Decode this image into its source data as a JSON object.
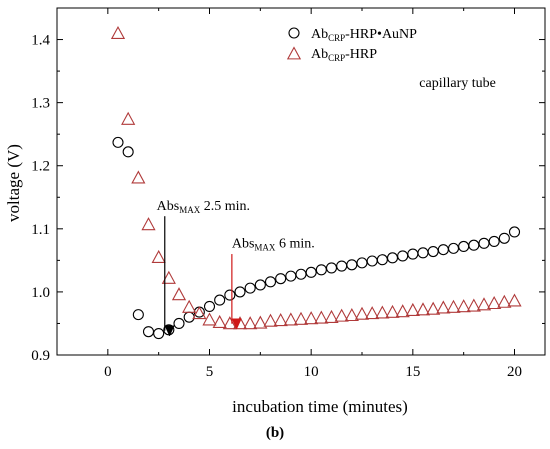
{
  "panel_label": "(b)",
  "chart_data": {
    "type": "scatter",
    "xlabel": "incubation time (minutes)",
    "ylabel": "voltage (V)",
    "xlim": [
      -2.5,
      21.5
    ],
    "ylim": [
      0.9,
      1.45
    ],
    "xticks": [
      0,
      5,
      10,
      15,
      20
    ],
    "yticks": [
      0.9,
      1.0,
      1.1,
      1.2,
      1.3,
      1.4
    ],
    "xtick_labels": [
      "0",
      "5",
      "10",
      "15",
      "20"
    ],
    "ytick_labels": [
      "0.9",
      "1.0",
      "1.1",
      "1.2",
      "1.3",
      "1.4"
    ],
    "legend_position": "top-right",
    "series": [
      {
        "name": "AbCRP-HRP•AuNP",
        "name_main": "Ab",
        "name_sub": "CRP",
        "name_rest": "-HRP•AuNP",
        "marker": "circle",
        "color": "#000000",
        "x": [
          0.5,
          1.0,
          1.5,
          2.0,
          2.5,
          3.0,
          3.5,
          4.0,
          4.5,
          5.0,
          5.5,
          6.0,
          6.5,
          7.0,
          7.5,
          8.0,
          8.5,
          9.0,
          9.5,
          10.0,
          10.5,
          11.0,
          11.5,
          12.0,
          12.5,
          13.0,
          13.5,
          14.0,
          14.5,
          15.0,
          15.5,
          16.0,
          16.5,
          17.0,
          17.5,
          18.0,
          18.5,
          19.0,
          19.5,
          20.0
        ],
        "y": [
          1.237,
          1.222,
          0.964,
          0.937,
          0.934,
          0.94,
          0.95,
          0.96,
          0.968,
          0.977,
          0.987,
          0.995,
          1.0,
          1.006,
          1.011,
          1.016,
          1.021,
          1.025,
          1.028,
          1.031,
          1.035,
          1.038,
          1.041,
          1.043,
          1.046,
          1.049,
          1.051,
          1.054,
          1.057,
          1.06,
          1.062,
          1.064,
          1.067,
          1.069,
          1.072,
          1.074,
          1.077,
          1.08,
          1.085,
          1.095
        ]
      },
      {
        "name": "AbCRP-HRP",
        "name_main": "Ab",
        "name_sub": "CRP",
        "name_rest": "-HRP",
        "marker": "triangle",
        "color": "#b03a3a",
        "x": [
          0.5,
          1.0,
          1.5,
          2.0,
          2.5,
          3.0,
          3.5,
          4.0,
          4.5,
          5.0,
          5.5,
          6.0,
          6.5,
          7.0,
          7.5,
          8.0,
          8.5,
          9.0,
          9.5,
          10.0,
          10.5,
          11.0,
          11.5,
          12.0,
          12.5,
          13.0,
          13.5,
          14.0,
          14.5,
          15.0,
          15.5,
          16.0,
          16.5,
          17.0,
          17.5,
          18.0,
          18.5,
          19.0,
          19.5,
          20.0
        ],
        "y": [
          1.411,
          1.275,
          1.182,
          1.108,
          1.056,
          1.023,
          0.997,
          0.977,
          0.967,
          0.957,
          0.953,
          0.951,
          0.951,
          0.951,
          0.952,
          0.955,
          0.956,
          0.957,
          0.958,
          0.959,
          0.96,
          0.961,
          0.963,
          0.964,
          0.966,
          0.967,
          0.968,
          0.969,
          0.97,
          0.972,
          0.973,
          0.974,
          0.976,
          0.977,
          0.978,
          0.979,
          0.981,
          0.983,
          0.985,
          0.987
        ]
      }
    ],
    "annotations": [
      {
        "kind": "text",
        "text": "capillary tube",
        "x": 17.2,
        "y": 1.325,
        "color": "#000000"
      },
      {
        "kind": "arrow",
        "main": "Abs",
        "sub": "MAX",
        "rest": " 2.5 min.",
        "color": "#000000",
        "text_x": 2.4,
        "text_y": 1.13,
        "arrow_x": 2.8,
        "arrow_from_y": 1.12,
        "arrow_to_y": 0.937
      },
      {
        "kind": "arrow",
        "main": "Abs",
        "sub": "MAX",
        "rest": " 6 min.",
        "color": "#d01818",
        "text_x": 6.1,
        "text_y": 1.07,
        "arrow_x": 6.1,
        "arrow_from_y": 1.06,
        "arrow_to_y": 0.948
      }
    ]
  }
}
